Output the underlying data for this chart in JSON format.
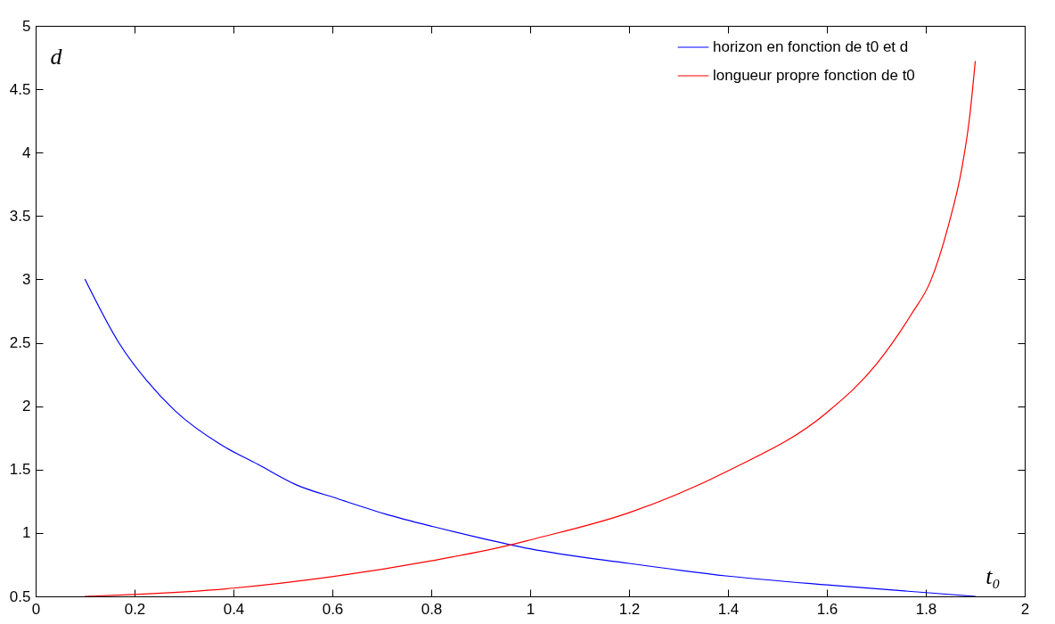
{
  "chart_data": {
    "type": "line",
    "xlabel": "t₀",
    "ylabel": "d",
    "xlim": [
      0,
      2
    ],
    "xticks": [
      0,
      0.2,
      0.4,
      0.6,
      0.8,
      1,
      1.2,
      1.4,
      1.6,
      1.8,
      2
    ],
    "ylim": [
      0.5,
      5
    ],
    "yticks": [
      0.5,
      1,
      1.5,
      2,
      2.5,
      3,
      3.5,
      4,
      4.5,
      5
    ],
    "grid": false,
    "legend": "top right",
    "marker": "none",
    "line_style": "solid",
    "series": [
      {
        "name": "horizon en fonction de t0 et d",
        "color": "#0000ff",
        "x": [
          0.1,
          0.17,
          0.225,
          0.283,
          0.373,
          0.45,
          0.527,
          0.611,
          0.707,
          0.804,
          0.9,
          1.0,
          1.2,
          1.4,
          1.6,
          1.8,
          1.9
        ],
        "values": [
          3.0,
          2.49,
          2.2,
          1.96,
          1.7,
          1.54,
          1.38,
          1.27,
          1.15,
          1.05,
          0.96,
          0.875,
          0.76,
          0.66,
          0.59,
          0.53,
          0.5
        ]
      },
      {
        "name": "longueur propre fonction de t0",
        "color": "#ff0000",
        "x": [
          0.1,
          0.2,
          0.4,
          0.6,
          0.8,
          0.965,
          1.0,
          1.2,
          1.4,
          1.6,
          1.7,
          1.77,
          1.81,
          1.846,
          1.873,
          1.888,
          1.9
        ],
        "values": [
          0.5,
          0.515,
          0.565,
          0.655,
          0.78,
          0.91,
          0.945,
          1.16,
          1.49,
          1.95,
          2.33,
          2.72,
          2.99,
          3.43,
          3.88,
          4.26,
          4.72
        ]
      }
    ]
  }
}
